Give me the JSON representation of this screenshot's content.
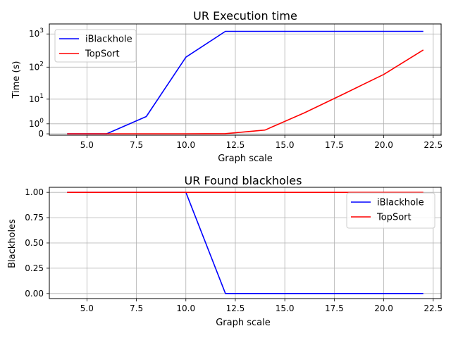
{
  "chart_data": [
    {
      "type": "line",
      "title": "UR Execution time",
      "xlabel": "Graph scale",
      "ylabel": "Time (s)",
      "yscale": "symlog",
      "grid": true,
      "legend": "upper left",
      "xlim": [
        3.1,
        22.9
      ],
      "ylim": [
        -0.1,
        2000
      ],
      "xticks": [
        5.0,
        7.5,
        10.0,
        12.5,
        15.0,
        17.5,
        20.0,
        22.5
      ],
      "xtick_labels": [
        "5.0",
        "7.5",
        "10.0",
        "12.5",
        "15.0",
        "17.5",
        "20.0",
        "22.5"
      ],
      "yticks": [
        0,
        1,
        10,
        100,
        1000
      ],
      "ytick_labels": [
        {
          "base": "0",
          "exp": ""
        },
        {
          "base": "10",
          "exp": "0"
        },
        {
          "base": "10",
          "exp": "1"
        },
        {
          "base": "10",
          "exp": "2"
        },
        {
          "base": "10",
          "exp": "3"
        }
      ],
      "x": [
        4,
        6,
        8,
        10,
        12,
        14,
        16,
        18,
        20,
        22
      ],
      "series": [
        {
          "name": "iBlackhole",
          "color": "#0000ff",
          "values": [
            0,
            0,
            2.3,
            200,
            1200,
            1200,
            1200,
            1200,
            1200,
            1200
          ]
        },
        {
          "name": "TopSort",
          "color": "#ff0000",
          "values": [
            0,
            0,
            0,
            0,
            0.01,
            0.3,
            3.3,
            15,
            60,
            330
          ]
        }
      ]
    },
    {
      "type": "line",
      "title": "UR Found blackholes",
      "xlabel": "Graph scale",
      "ylabel": "Blackholes",
      "grid": true,
      "legend": "upper right",
      "xlim": [
        3.1,
        22.9
      ],
      "ylim": [
        -0.05,
        1.05
      ],
      "xticks": [
        5.0,
        7.5,
        10.0,
        12.5,
        15.0,
        17.5,
        20.0,
        22.5
      ],
      "xtick_labels": [
        "5.0",
        "7.5",
        "10.0",
        "12.5",
        "15.0",
        "17.5",
        "20.0",
        "22.5"
      ],
      "yticks": [
        0,
        0.25,
        0.5,
        0.75,
        1.0
      ],
      "ytick_labels": [
        "0.00",
        "0.25",
        "0.50",
        "0.75",
        "1.00"
      ],
      "x": [
        4,
        6,
        8,
        10,
        12,
        14,
        16,
        18,
        20,
        22
      ],
      "series": [
        {
          "name": "iBlackhole",
          "color": "#0000ff",
          "values": [
            1,
            1,
            1,
            1,
            0,
            0,
            0,
            0,
            0,
            0
          ]
        },
        {
          "name": "TopSort",
          "color": "#ff0000",
          "values": [
            1,
            1,
            1,
            1,
            1,
            1,
            1,
            1,
            1,
            1
          ]
        }
      ]
    }
  ]
}
